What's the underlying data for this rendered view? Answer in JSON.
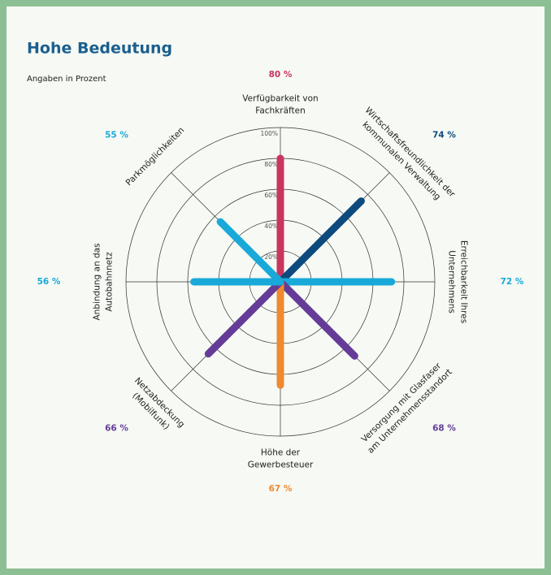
{
  "chart_data": {
    "type": "radial-bar",
    "title": "Hohe Bedeutung",
    "subtitle": "Angaben in Prozent",
    "categories": [
      [
        "Verfügbarkeit von",
        "Fachkräften"
      ],
      [
        "Wirtschaftsfreundlichkeit der",
        "kommunalen Verwaltung"
      ],
      [
        "Erreichbarkeit Ihres",
        "Unternehmens"
      ],
      [
        "Versorgung mit Glasfaser",
        "am Unternehmensstandort"
      ],
      [
        "Höhe der",
        "Gewerbesteuer"
      ],
      [
        "Netzabdeckung",
        "(Mobilfunk)"
      ],
      [
        "Anbindung an das",
        "Autobahnnetz"
      ],
      [
        "Parkmöglichkeiten"
      ]
    ],
    "values": [
      80,
      74,
      72,
      68,
      67,
      66,
      56,
      55
    ],
    "value_labels": [
      "80 %",
      "74 %",
      "72 %",
      "68 %",
      "67 %",
      "66 %",
      "56 %",
      "55 %"
    ],
    "colors": [
      "#c8365f",
      "#0d4a7e",
      "#19a9d9",
      "#643c98",
      "#f0892f",
      "#643c98",
      "#19a9d9",
      "#19a9d9"
    ],
    "rlim": [
      0,
      100
    ],
    "rticks": [
      {
        "value": 20,
        "label": "20%"
      },
      {
        "value": 40,
        "label": "40%"
      },
      {
        "value": 60,
        "label": "60%"
      },
      {
        "value": 80,
        "label": "80%"
      },
      {
        "value": 100,
        "label": "100%"
      }
    ],
    "grid": true
  }
}
